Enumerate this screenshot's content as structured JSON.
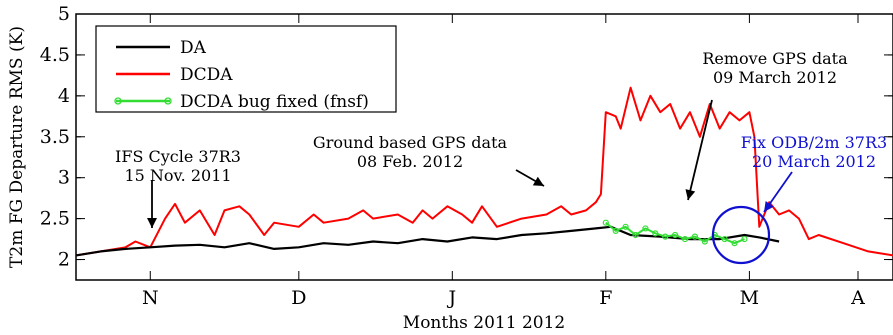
{
  "chart_data": {
    "type": "line",
    "title": "",
    "xlabel": "Months 2011 2012",
    "ylabel": "T2m FG Departure RMS (K)",
    "ylim": [
      1.75,
      5
    ],
    "yticks": [
      "2",
      "2.5",
      "3",
      "3.5",
      "4",
      "4.5",
      "5"
    ],
    "ytick_values": [
      2,
      2.5,
      3,
      3.5,
      4,
      4.5,
      5
    ],
    "xlim": [
      0,
      165
    ],
    "xticks": [
      "N",
      "D",
      "J",
      "F",
      "M",
      "A"
    ],
    "xtick_values": [
      15,
      45,
      76,
      107,
      136,
      167
    ],
    "grid": false,
    "legend_position": "top-left",
    "series": [
      {
        "name": "DA",
        "color": "#000000",
        "points": [
          [
            0,
            2.05
          ],
          [
            5,
            2.1
          ],
          [
            10,
            2.13
          ],
          [
            15,
            2.15
          ],
          [
            20,
            2.17
          ],
          [
            25,
            2.18
          ],
          [
            30,
            2.15
          ],
          [
            35,
            2.2
          ],
          [
            40,
            2.13
          ],
          [
            45,
            2.15
          ],
          [
            50,
            2.2
          ],
          [
            55,
            2.18
          ],
          [
            60,
            2.22
          ],
          [
            65,
            2.2
          ],
          [
            70,
            2.25
          ],
          [
            75,
            2.22
          ],
          [
            80,
            2.27
          ],
          [
            85,
            2.25
          ],
          [
            90,
            2.3
          ],
          [
            95,
            2.32
          ],
          [
            100,
            2.35
          ],
          [
            105,
            2.38
          ],
          [
            108,
            2.4
          ],
          [
            112,
            2.3
          ],
          [
            118,
            2.28
          ],
          [
            124,
            2.25
          ],
          [
            130,
            2.25
          ],
          [
            135,
            2.3
          ],
          [
            138,
            2.27
          ],
          [
            142,
            2.22
          ]
        ]
      },
      {
        "name": "DCDA",
        "color": "#ff0000",
        "points": [
          [
            0,
            2.05
          ],
          [
            5,
            2.1
          ],
          [
            10,
            2.15
          ],
          [
            12,
            2.22
          ],
          [
            15,
            2.15
          ],
          [
            18,
            2.5
          ],
          [
            20,
            2.68
          ],
          [
            22,
            2.45
          ],
          [
            25,
            2.6
          ],
          [
            28,
            2.3
          ],
          [
            30,
            2.6
          ],
          [
            33,
            2.65
          ],
          [
            35,
            2.55
          ],
          [
            38,
            2.3
          ],
          [
            40,
            2.45
          ],
          [
            45,
            2.4
          ],
          [
            48,
            2.55
          ],
          [
            50,
            2.45
          ],
          [
            55,
            2.5
          ],
          [
            58,
            2.6
          ],
          [
            60,
            2.5
          ],
          [
            65,
            2.55
          ],
          [
            68,
            2.45
          ],
          [
            70,
            2.6
          ],
          [
            72,
            2.5
          ],
          [
            75,
            2.65
          ],
          [
            78,
            2.55
          ],
          [
            80,
            2.45
          ],
          [
            82,
            2.65
          ],
          [
            85,
            2.4
          ],
          [
            90,
            2.5
          ],
          [
            95,
            2.55
          ],
          [
            98,
            2.65
          ],
          [
            100,
            2.55
          ],
          [
            103,
            2.6
          ],
          [
            105,
            2.7
          ],
          [
            106,
            2.8
          ],
          [
            107,
            3.8
          ],
          [
            109,
            3.75
          ],
          [
            110,
            3.6
          ],
          [
            112,
            4.1
          ],
          [
            114,
            3.7
          ],
          [
            116,
            4.0
          ],
          [
            118,
            3.8
          ],
          [
            120,
            3.9
          ],
          [
            122,
            3.6
          ],
          [
            124,
            3.8
          ],
          [
            126,
            3.5
          ],
          [
            128,
            3.9
          ],
          [
            130,
            3.6
          ],
          [
            132,
            3.8
          ],
          [
            134,
            3.7
          ],
          [
            136,
            3.8
          ],
          [
            137,
            3.5
          ],
          [
            138,
            2.4
          ],
          [
            140,
            2.7
          ],
          [
            142,
            2.55
          ],
          [
            144,
            2.6
          ],
          [
            146,
            2.5
          ],
          [
            148,
            2.25
          ],
          [
            150,
            2.3
          ],
          [
            155,
            2.2
          ],
          [
            160,
            2.1
          ],
          [
            165,
            2.05
          ]
        ]
      },
      {
        "name": "DCDA bug fixed (fnsf)",
        "color": "#33dd33",
        "points": [
          [
            107,
            2.45
          ],
          [
            109,
            2.35
          ],
          [
            111,
            2.4
          ],
          [
            113,
            2.3
          ],
          [
            115,
            2.38
          ],
          [
            117,
            2.32
          ],
          [
            119,
            2.28
          ],
          [
            121,
            2.3
          ],
          [
            123,
            2.25
          ],
          [
            125,
            2.28
          ],
          [
            127,
            2.22
          ],
          [
            129,
            2.3
          ],
          [
            131,
            2.25
          ],
          [
            133,
            2.2
          ],
          [
            135,
            2.25
          ]
        ]
      }
    ],
    "annotations": [
      {
        "lines": [
          "IFS Cycle 37R3",
          "15 Nov. 2011"
        ],
        "color": "#000000"
      },
      {
        "lines": [
          "Ground based GPS data",
          "08 Feb. 2012"
        ],
        "color": "#000000"
      },
      {
        "lines": [
          "Remove GPS data",
          "09 March 2012"
        ],
        "color": "#000000"
      },
      {
        "lines": [
          "Fix ODB/2m 37R3",
          "20 March 2012"
        ],
        "color": "#1010d0"
      }
    ]
  }
}
